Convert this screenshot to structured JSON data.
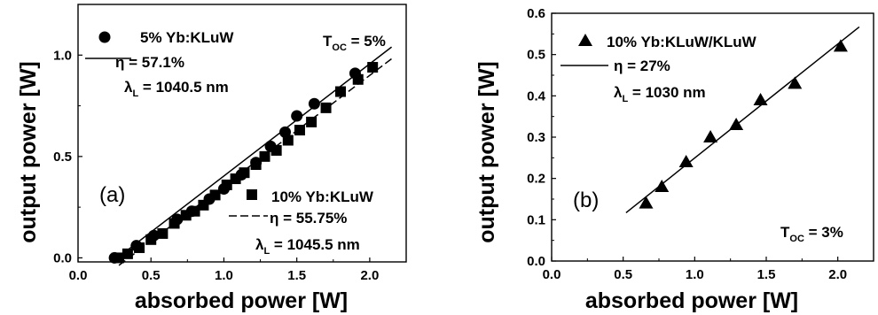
{
  "chart_data": [
    {
      "type": "scatter",
      "panel_label": "(a)",
      "xlabel": "absorbed power [W]",
      "ylabel": "output power [W]",
      "xlim": [
        0.0,
        2.25
      ],
      "ylim": [
        -0.02,
        1.25
      ],
      "xticks": [
        "0.0",
        "0.5",
        "1.0",
        "1.5",
        "2.0"
      ],
      "yticks": [
        "0.0",
        "0.5",
        "1.0"
      ],
      "annotation": {
        "base": "T",
        "sub": "OC",
        "rest": " = 5%"
      },
      "series": [
        {
          "name": "5% Yb:KLuW",
          "marker": "circle",
          "fit_label": "η = 57.1%",
          "lambda": {
            "base": "λ",
            "sub": "L",
            "rest": " = 1040.5 nm"
          },
          "x": [
            0.25,
            0.4,
            0.52,
            0.68,
            0.78,
            0.9,
            1.0,
            1.12,
            1.22,
            1.32,
            1.42,
            1.5,
            1.62,
            1.9
          ],
          "y": [
            0.0,
            0.06,
            0.11,
            0.19,
            0.23,
            0.29,
            0.34,
            0.41,
            0.47,
            0.55,
            0.62,
            0.7,
            0.76,
            0.91
          ],
          "fit": {
            "x": [
              0.27,
              2.15
            ],
            "y": [
              0.0,
              1.04
            ]
          }
        },
        {
          "name": "10% Yb:KLuW",
          "marker": "square",
          "fit_label": "η = 55.75%",
          "lambda": {
            "base": "λ",
            "sub": "L",
            "rest": " = 1045.5 nm"
          },
          "x": [
            0.28,
            0.34,
            0.42,
            0.5,
            0.58,
            0.66,
            0.74,
            0.8,
            0.86,
            0.94,
            1.02,
            1.08,
            1.14,
            1.22,
            1.28,
            1.36,
            1.44,
            1.52,
            1.6,
            1.7,
            1.8,
            1.92,
            2.02
          ],
          "y": [
            0.0,
            0.02,
            0.05,
            0.09,
            0.12,
            0.17,
            0.21,
            0.23,
            0.26,
            0.31,
            0.36,
            0.39,
            0.42,
            0.46,
            0.5,
            0.53,
            0.58,
            0.63,
            0.67,
            0.74,
            0.82,
            0.88,
            0.94
          ]
        }
      ]
    },
    {
      "type": "scatter",
      "panel_label": "(b)",
      "xlabel": "absorbed power [W]",
      "ylabel": "output power [W]",
      "xlim": [
        0.0,
        2.25
      ],
      "ylim": [
        0.0,
        0.6
      ],
      "xticks": [
        "0.0",
        "0.5",
        "1.0",
        "1.5",
        "2.0"
      ],
      "yticks": [
        "0.0",
        "0.1",
        "0.2",
        "0.3",
        "0.4",
        "0.5",
        "0.6"
      ],
      "annotation": {
        "base": "T",
        "sub": "OC",
        "rest": " = 3%"
      },
      "series": [
        {
          "name": "10% Yb:KLuW/KLuW",
          "marker": "triangle",
          "fit_label": "η = 27%",
          "lambda": {
            "base": "λ",
            "sub": "L",
            "rest": " = 1030 nm"
          },
          "x": [
            0.66,
            0.77,
            0.94,
            1.11,
            1.29,
            1.46,
            1.7,
            2.02
          ],
          "y": [
            0.14,
            0.18,
            0.24,
            0.3,
            0.33,
            0.39,
            0.43,
            0.52
          ],
          "fit": {
            "x": [
              0.52,
              2.15
            ],
            "y": [
              0.117,
              0.567
            ]
          }
        }
      ]
    }
  ]
}
